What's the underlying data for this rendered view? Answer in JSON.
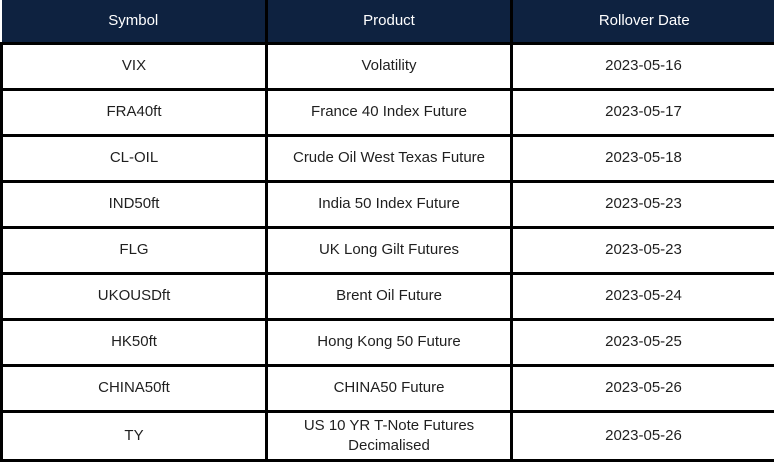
{
  "chart_data": {
    "type": "table",
    "columns": [
      "Symbol",
      "Product",
      "Rollover Date"
    ],
    "rows": [
      [
        "VIX",
        "Volatility",
        "2023-05-16"
      ],
      [
        "FRA40ft",
        "France 40 Index Future",
        "2023-05-17"
      ],
      [
        "CL-OIL",
        "Crude Oil West Texas Future",
        "2023-05-18"
      ],
      [
        "IND50ft",
        "India 50 Index Future",
        "2023-05-23"
      ],
      [
        "FLG",
        "UK Long Gilt Futures",
        "2023-05-23"
      ],
      [
        "UKOUSDft",
        "Brent Oil Future",
        "2023-05-24"
      ],
      [
        "HK50ft",
        "Hong Kong 50 Future",
        "2023-05-25"
      ],
      [
        "CHINA50ft",
        "CHINA50 Future",
        "2023-05-26"
      ],
      [
        "TY",
        "US 10 YR T-Note Futures Decimalised",
        "2023-05-26"
      ]
    ]
  },
  "colors": {
    "header_bg": "#0e2240",
    "header_text": "#ffffff",
    "body_bg": "#ffffff",
    "body_text": "#1f1f1f",
    "border": "#000000"
  }
}
